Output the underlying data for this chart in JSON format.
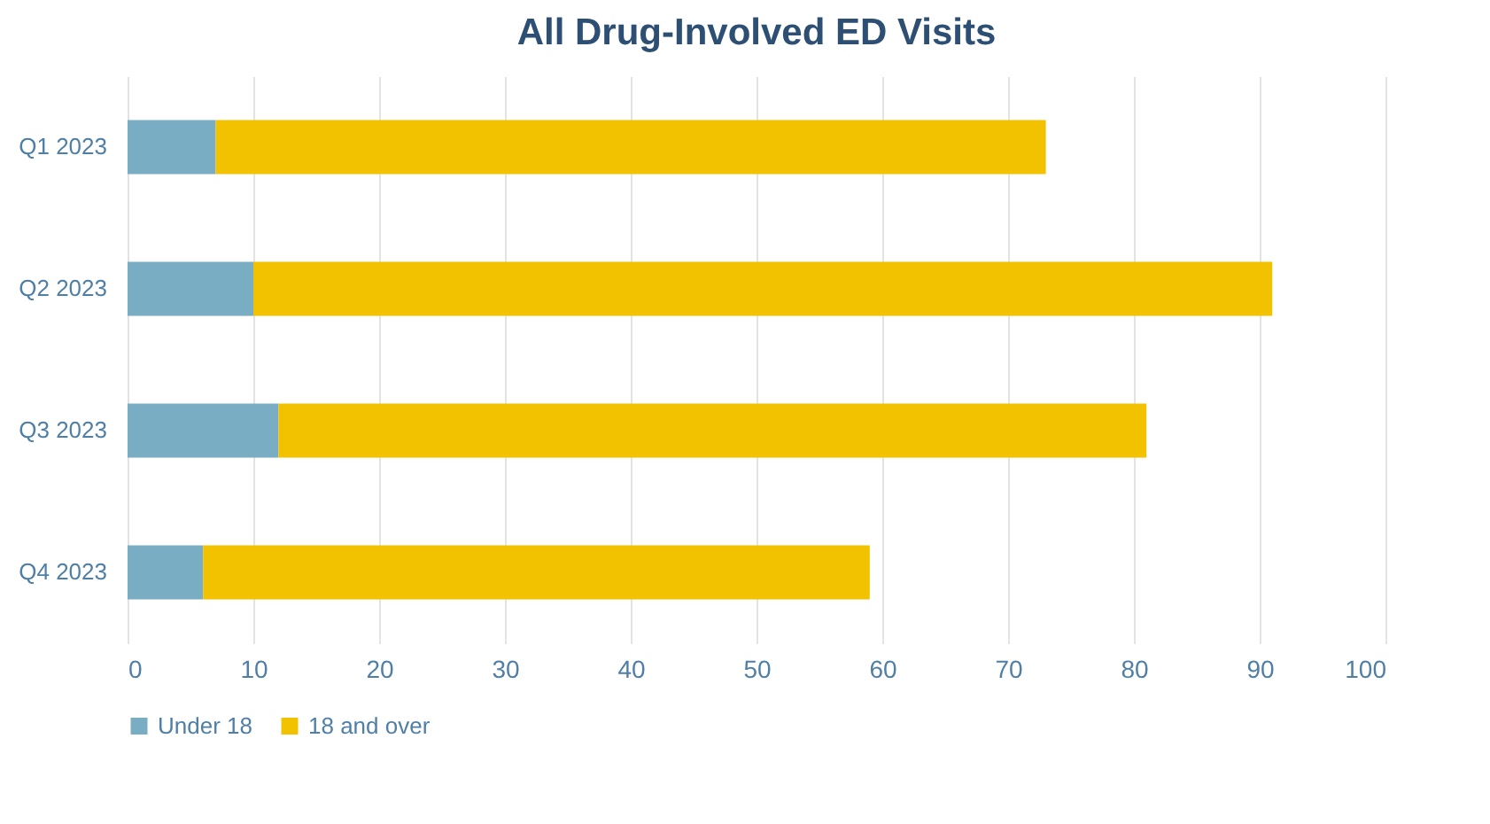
{
  "chart_data": {
    "type": "bar",
    "title": "All Drug-Involved ED Visits",
    "orientation": "horizontal",
    "stacked": true,
    "categories": [
      "Q1 2023",
      "Q2 2023",
      "Q3 2023",
      "Q4 2023"
    ],
    "series": [
      {
        "name": "Under 18",
        "color": "#79adc3",
        "values": [
          7,
          10,
          12,
          6
        ]
      },
      {
        "name": "18 and over",
        "color": "#f2c200",
        "values": [
          66,
          81,
          69,
          53
        ]
      }
    ],
    "xlim": [
      0,
      100
    ],
    "xticks": [
      0,
      10,
      20,
      30,
      40,
      50,
      60,
      70,
      80,
      90,
      100
    ],
    "grid": "x",
    "legend": "bottom"
  }
}
